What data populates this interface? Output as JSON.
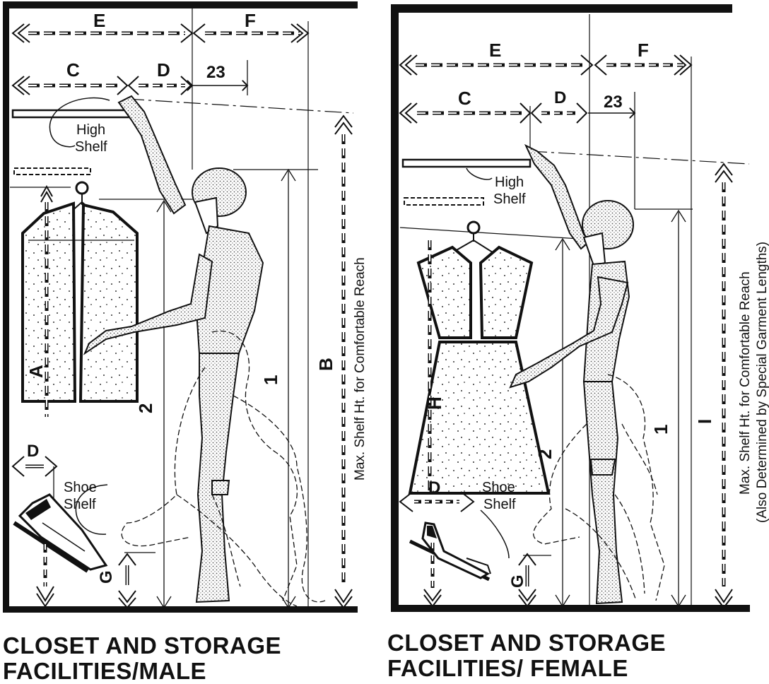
{
  "male": {
    "caption_line1": "CLOSET AND STORAGE",
    "caption_line2": "FACILITIES/MALE",
    "labels": {
      "E": "E",
      "F": "F",
      "C": "C",
      "D": "D",
      "n23": "23",
      "A": "A",
      "B": "B",
      "G": "G",
      "one": "1",
      "two": "2",
      "D_shoe": "D"
    },
    "high_shelf_1": "High",
    "high_shelf_2": "Shelf",
    "shoe_shelf_1": "Shoe",
    "shoe_shelf_2": "Shelf",
    "max_shelf": "Max. Shelf Ht. for Comfortable Reach"
  },
  "female": {
    "caption_line1": "CLOSET AND STORAGE",
    "caption_line2": "FACILITIES/ FEMALE",
    "labels": {
      "E": "E",
      "F": "F",
      "C": "C",
      "D": "D",
      "n23": "23",
      "H": "H",
      "I": "I",
      "G": "G",
      "one": "1",
      "two": "2",
      "D_shoe": "D"
    },
    "high_shelf_1": "High",
    "high_shelf_2": "Shelf",
    "shoe_shelf_1": "Shoe",
    "shoe_shelf_2": "Shelf",
    "max_shelf_1": "Max. Shelf Ht. for Comfortable Reach",
    "max_shelf_2": "(Also Determined by Special Garment Lengths)"
  }
}
